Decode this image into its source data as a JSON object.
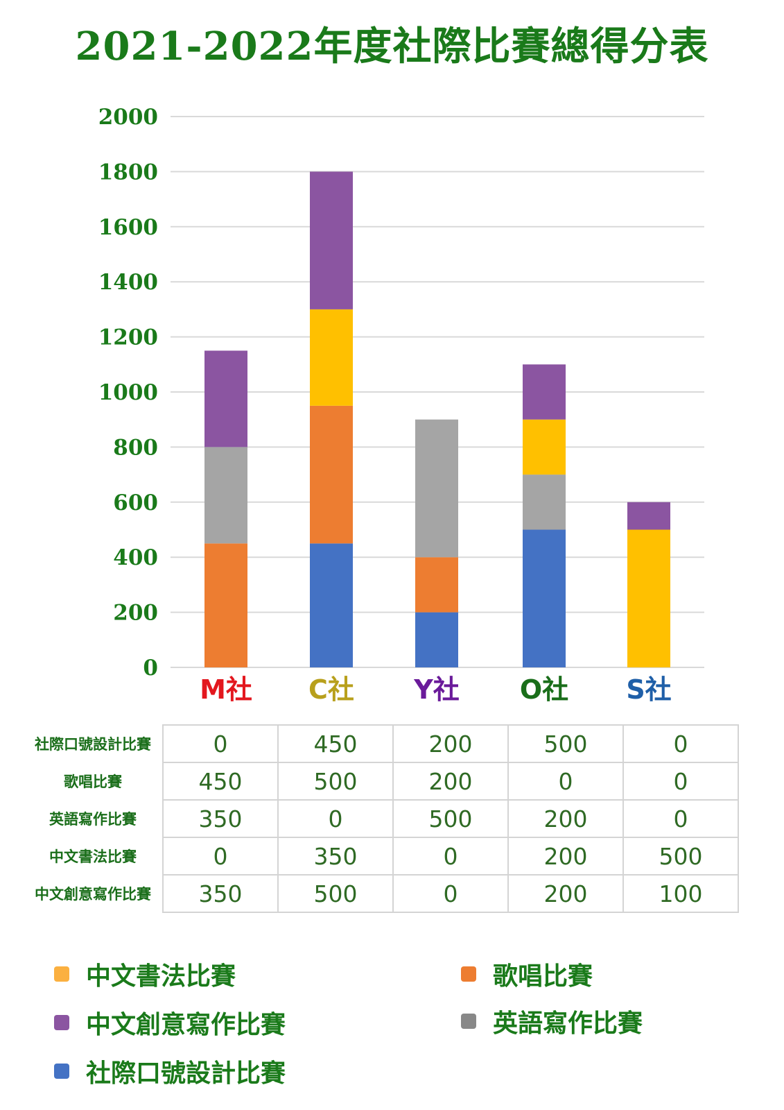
{
  "title": "2021-2022年度社際比賽總得分表",
  "chart_data": {
    "type": "bar",
    "stacked": true,
    "categories": [
      "M社",
      "C社",
      "Y社",
      "O社",
      "S社"
    ],
    "category_colors": [
      "#e3171e",
      "#b8a01c",
      "#6a1b9a",
      "#1a6e1a",
      "#1f5fa8"
    ],
    "ylim": [
      0,
      2000
    ],
    "yticks": [
      "0",
      "200",
      "400",
      "600",
      "800",
      "1000",
      "1200",
      "1400",
      "1600",
      "1800",
      "2000"
    ],
    "grid": true,
    "series": [
      {
        "name": "社際口號設計比賽",
        "color": "#4472c4",
        "values": [
          0,
          450,
          200,
          500,
          0
        ]
      },
      {
        "name": "歌唱比賽",
        "color": "#ed7d31",
        "values": [
          450,
          500,
          200,
          0,
          0
        ]
      },
      {
        "name": "英語寫作比賽",
        "color": "#a5a5a5",
        "values": [
          350,
          0,
          500,
          200,
          0
        ]
      },
      {
        "name": "中文書法比賽",
        "color": "#ffc000",
        "values": [
          0,
          350,
          0,
          200,
          500
        ]
      },
      {
        "name": "中文創意寫作比賽",
        "color": "#8b55a1",
        "values": [
          350,
          500,
          0,
          200,
          100
        ]
      }
    ]
  },
  "table": {
    "rows": [
      {
        "label": "社際口號設計比賽",
        "cells": [
          "0",
          "450",
          "200",
          "500",
          "0"
        ]
      },
      {
        "label": "歌唱比賽",
        "cells": [
          "450",
          "500",
          "200",
          "0",
          "0"
        ]
      },
      {
        "label": "英語寫作比賽",
        "cells": [
          "350",
          "0",
          "500",
          "200",
          "0"
        ]
      },
      {
        "label": "中文書法比賽",
        "cells": [
          "0",
          "350",
          "0",
          "200",
          "500"
        ]
      },
      {
        "label": "中文創意寫作比賽",
        "cells": [
          "350",
          "500",
          "0",
          "200",
          "100"
        ]
      }
    ]
  },
  "legend": [
    {
      "label": "中文書法比賽",
      "color": "#fbb040"
    },
    {
      "label": "歌唱比賽",
      "color": "#ed7d31"
    },
    {
      "label": "中文創意寫作比賽",
      "color": "#8b55a1"
    },
    {
      "label": "英語寫作比賽",
      "color": "#888888"
    },
    {
      "label": "社際口號設計比賽",
      "color": "#4472c4"
    }
  ]
}
